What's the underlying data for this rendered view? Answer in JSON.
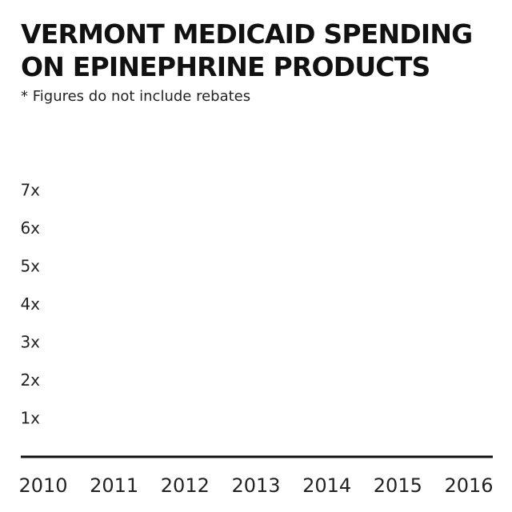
{
  "title": "VERMONT MEDICAID SPENDING ON EPINEPHRINE PRODUCTS",
  "subtitle": "* Figures do not include rebates",
  "colors": {
    "text": "#222222",
    "axis": "#111111"
  },
  "chart_data": {
    "type": "line",
    "title": "VERMONT MEDICAID SPENDING ON EPINEPHRINE PRODUCTS",
    "subtitle": "* Figures do not include rebates",
    "x": [
      "2010",
      "2011",
      "2012",
      "2013",
      "2014",
      "2015",
      "2016"
    ],
    "y_ticks": [
      "1x",
      "2x",
      "3x",
      "4x",
      "5x",
      "6x",
      "7x"
    ],
    "ylim": [
      0,
      7
    ],
    "series": [],
    "grid": false,
    "legend": "none"
  }
}
